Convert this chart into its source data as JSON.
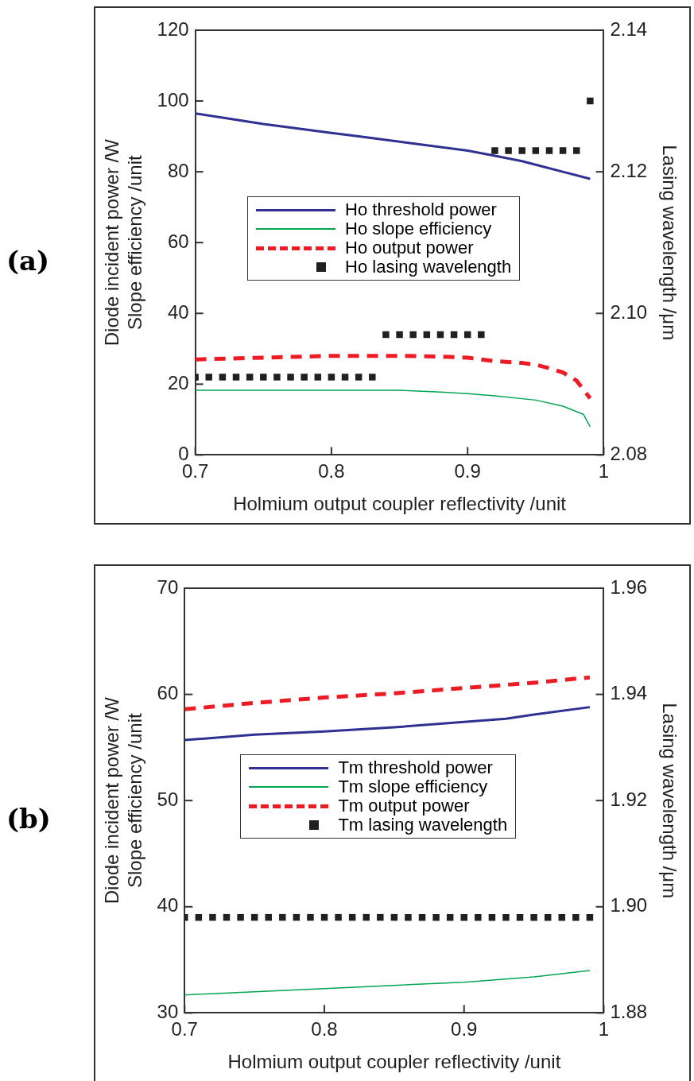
{
  "chart_data": [
    {
      "type": "line",
      "title": "(a)",
      "xlabel": "Holmium output coupler reflectivity /unit",
      "ylabel": "Diode incident power /W\nSlope efficiency /unit",
      "y2label": "Lasing wavelength /μm",
      "xlim": [
        0.7,
        1
      ],
      "xticks": [
        0.7,
        0.8,
        0.9,
        1
      ],
      "ylim": [
        0,
        120
      ],
      "yticks": [
        0,
        20,
        40,
        60,
        80,
        100,
        120
      ],
      "y2lim": [
        2.08,
        2.14
      ],
      "y2ticks": [
        2.08,
        {
          "value": 2.1,
          "label": "2.10"
        },
        2.12,
        2.14
      ],
      "grid": false,
      "legend": "center",
      "series": [
        {
          "name": "Ho threshold power",
          "color": "#2e3192",
          "line_style": "solid",
          "x": [
            0.7,
            0.72,
            0.75,
            0.78,
            0.8,
            0.82,
            0.85,
            0.88,
            0.9,
            0.92,
            0.94,
            0.95,
            0.97,
            0.99
          ],
          "values": [
            96.5,
            95.3,
            93.5,
            92,
            91,
            90,
            88.5,
            87,
            86,
            84.5,
            83,
            82,
            80,
            78
          ]
        },
        {
          "name": "Ho slope efficiency",
          "color": "#00a651",
          "line_style": "solid",
          "x": [
            0.7,
            0.75,
            0.8,
            0.85,
            0.88,
            0.9,
            0.92,
            0.95,
            0.97,
            0.985,
            0.99
          ],
          "values": [
            18.3,
            18.3,
            18.3,
            18.3,
            17.8,
            17.3,
            16.7,
            15.5,
            13.8,
            11.5,
            8
          ]
        },
        {
          "name": "Ho output power",
          "color": "#ed1c24",
          "line_style": "dashed",
          "x": [
            0.7,
            0.75,
            0.8,
            0.85,
            0.88,
            0.9,
            0.92,
            0.94,
            0.95,
            0.96,
            0.97,
            0.98,
            0.99
          ],
          "values": [
            27,
            27.5,
            28,
            28,
            27.8,
            27.5,
            26.5,
            26,
            25.5,
            24.5,
            23.3,
            21,
            16
          ]
        },
        {
          "name": "Ho lasing wavelength",
          "type": "scatter",
          "axis": "y2",
          "color": "#231f20",
          "marker": "square",
          "x": [
            0.7,
            0.71,
            0.72,
            0.73,
            0.74,
            0.75,
            0.76,
            0.77,
            0.78,
            0.79,
            0.8,
            0.81,
            0.82,
            0.83,
            0.84,
            0.85,
            0.86,
            0.87,
            0.88,
            0.89,
            0.9,
            0.91,
            0.92,
            0.93,
            0.94,
            0.95,
            0.96,
            0.97,
            0.98,
            0.99
          ],
          "values": [
            2.091,
            2.091,
            2.091,
            2.091,
            2.091,
            2.091,
            2.091,
            2.091,
            2.091,
            2.091,
            2.091,
            2.091,
            2.091,
            2.091,
            2.097,
            2.097,
            2.097,
            2.097,
            2.097,
            2.097,
            2.097,
            2.097,
            2.123,
            2.123,
            2.123,
            2.123,
            2.123,
            2.123,
            2.123,
            2.13
          ]
        }
      ]
    },
    {
      "type": "line",
      "title": "(b)",
      "xlabel": "Holmium output coupler reflectivity /unit",
      "ylabel": "Diode incident power /W\nSlope efficiency /unit",
      "y2label": "Lasing wavelength /μm",
      "xlim": [
        0.7,
        1
      ],
      "xticks": [
        0.7,
        0.8,
        0.9,
        1
      ],
      "ylim": [
        30,
        70
      ],
      "yticks": [
        30,
        40,
        50,
        60,
        70
      ],
      "y2lim": [
        1.88,
        1.96
      ],
      "y2ticks": [
        1.88,
        {
          "value": 1.9,
          "label": "1.90"
        },
        1.92,
        1.94,
        1.96
      ],
      "grid": false,
      "legend": "center",
      "series": [
        {
          "name": "Tm threshold power",
          "color": "#2e3192",
          "line_style": "solid",
          "x": [
            0.7,
            0.75,
            0.8,
            0.85,
            0.9,
            0.93,
            0.95,
            0.99
          ],
          "values": [
            55.7,
            56.2,
            56.5,
            56.9,
            57.4,
            57.7,
            58.1,
            58.8
          ]
        },
        {
          "name": "Tm slope efficiency",
          "color": "#00a651",
          "line_style": "solid",
          "x": [
            0.7,
            0.75,
            0.8,
            0.85,
            0.9,
            0.95,
            0.99
          ],
          "values": [
            31.7,
            32,
            32.3,
            32.6,
            32.9,
            33.4,
            34
          ]
        },
        {
          "name": "Tm output power",
          "color": "#ed1c24",
          "line_style": "dashed",
          "x": [
            0.7,
            0.75,
            0.8,
            0.85,
            0.9,
            0.95,
            0.99
          ],
          "values": [
            58.6,
            59.2,
            59.7,
            60.1,
            60.6,
            61.1,
            61.6
          ]
        },
        {
          "name": "Tm lasing wavelength",
          "type": "scatter",
          "axis": "y2",
          "color": "#231f20",
          "marker": "square",
          "x": [
            0.7,
            0.71,
            0.72,
            0.73,
            0.74,
            0.75,
            0.76,
            0.77,
            0.78,
            0.79,
            0.8,
            0.81,
            0.82,
            0.83,
            0.84,
            0.85,
            0.86,
            0.87,
            0.88,
            0.89,
            0.9,
            0.91,
            0.92,
            0.93,
            0.94,
            0.95,
            0.96,
            0.97,
            0.98,
            0.99
          ],
          "values": [
            1.898,
            1.898,
            1.898,
            1.898,
            1.898,
            1.898,
            1.898,
            1.898,
            1.898,
            1.898,
            1.898,
            1.898,
            1.898,
            1.898,
            1.898,
            1.898,
            1.898,
            1.898,
            1.898,
            1.898,
            1.898,
            1.898,
            1.898,
            1.898,
            1.898,
            1.898,
            1.898,
            1.898,
            1.898,
            1.898
          ]
        }
      ]
    }
  ]
}
